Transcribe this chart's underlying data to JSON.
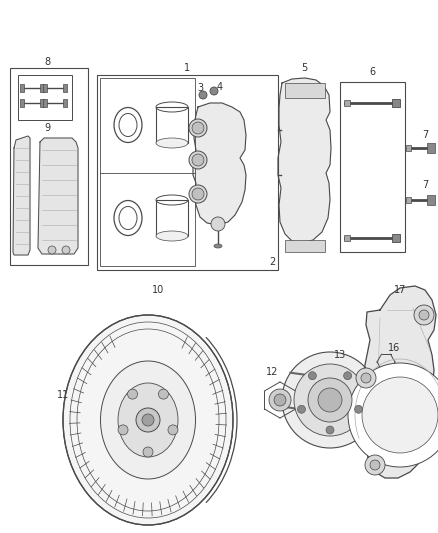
{
  "bg_color": "#ffffff",
  "line_color": "#4a4a4a",
  "label_color": "#333333",
  "fig_w": 4.38,
  "fig_h": 5.33,
  "dpi": 100,
  "lw": 0.7
}
